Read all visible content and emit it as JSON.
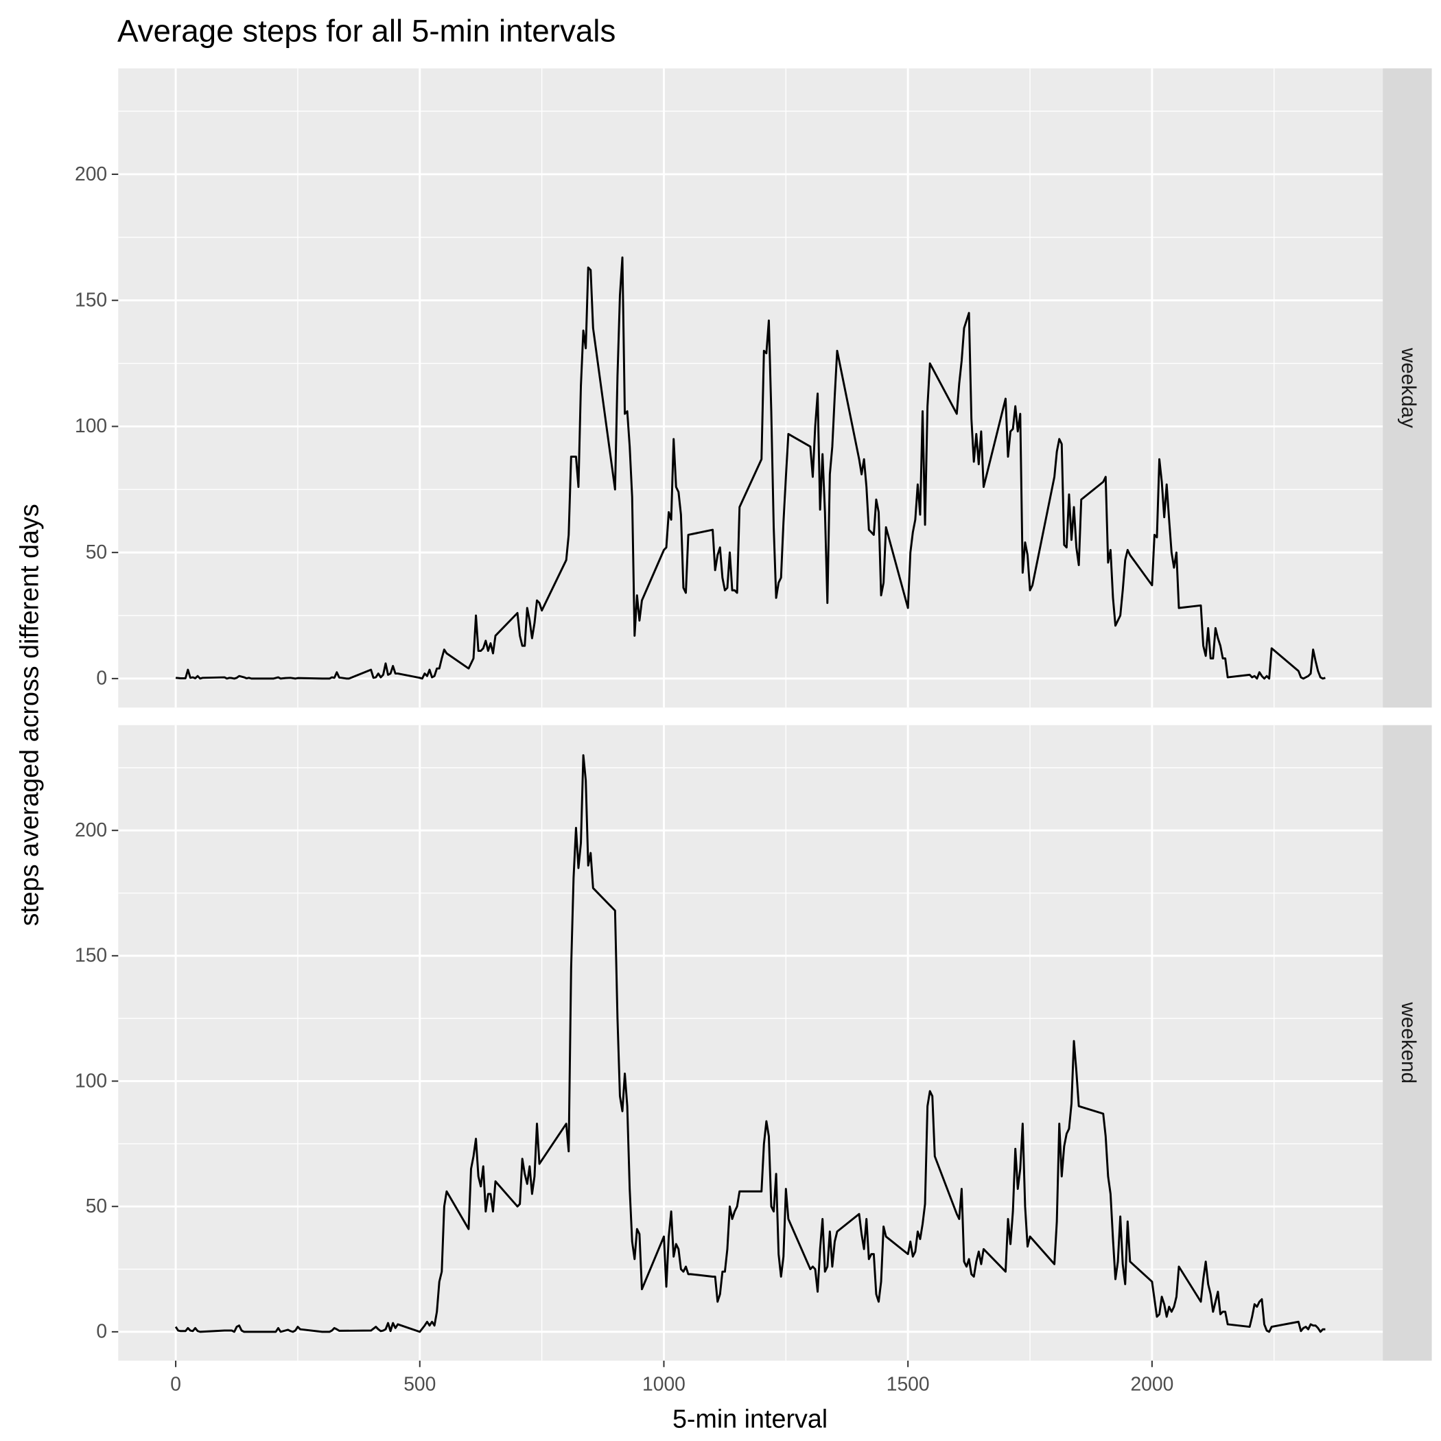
{
  "chart_data": {
    "type": "line",
    "title": "Average steps for all 5-min intervals",
    "xlabel": "5-min interval",
    "ylabel": "steps averaged across different days",
    "xlim": [
      -117.75,
      2472.75
    ],
    "xticks": [
      0,
      500,
      1000,
      1500,
      2000
    ],
    "xminorticks": [
      250,
      750,
      1250,
      1750,
      2250
    ],
    "ylim": [
      -11.5,
      242
    ],
    "yticks": [
      0,
      50,
      100,
      150,
      200
    ],
    "yminorticks": [
      25,
      75,
      125,
      175,
      225
    ],
    "grid": true,
    "series": [
      {
        "name": "weekday",
        "color": "#000000",
        "x": [
          0,
          5,
          10,
          20,
          25,
          30,
          35,
          40,
          45,
          50,
          55,
          100,
          105,
          110,
          115,
          120,
          125,
          130,
          140,
          145,
          150,
          155,
          200,
          210,
          215,
          225,
          235,
          245,
          250,
          300,
          315,
          320,
          325,
          330,
          335,
          340,
          350,
          355,
          400,
          405,
          410,
          415,
          420,
          425,
          430,
          435,
          440,
          445,
          450,
          455,
          500,
          505,
          510,
          515,
          520,
          525,
          530,
          535,
          540,
          545,
          550,
          555,
          600,
          605,
          610,
          615,
          620,
          625,
          630,
          635,
          640,
          645,
          650,
          655,
          700,
          705,
          710,
          715,
          720,
          725,
          730,
          735,
          740,
          745,
          750,
          800,
          805,
          810,
          815,
          820,
          825,
          830,
          835,
          840,
          845,
          850,
          855,
          900,
          905,
          910,
          915,
          920,
          925,
          930,
          935,
          940,
          945,
          950,
          955,
          1000,
          1005,
          1010,
          1015,
          1020,
          1025,
          1030,
          1035,
          1040,
          1045,
          1050,
          1100,
          1105,
          1110,
          1115,
          1120,
          1125,
          1130,
          1135,
          1140,
          1145,
          1150,
          1155,
          1200,
          1205,
          1210,
          1215,
          1220,
          1225,
          1230,
          1235,
          1240,
          1245,
          1250,
          1255,
          1300,
          1305,
          1310,
          1315,
          1320,
          1325,
          1330,
          1335,
          1340,
          1345,
          1350,
          1355,
          1400,
          1405,
          1410,
          1415,
          1420,
          1425,
          1430,
          1435,
          1440,
          1445,
          1450,
          1455,
          1500,
          1505,
          1510,
          1515,
          1520,
          1525,
          1530,
          1535,
          1540,
          1545,
          1600,
          1605,
          1610,
          1615,
          1620,
          1625,
          1630,
          1635,
          1640,
          1645,
          1650,
          1655,
          1700,
          1705,
          1710,
          1715,
          1720,
          1725,
          1730,
          1735,
          1740,
          1745,
          1750,
          1755,
          1800,
          1805,
          1810,
          1815,
          1820,
          1825,
          1830,
          1835,
          1840,
          1845,
          1850,
          1855,
          1900,
          1905,
          1910,
          1915,
          1920,
          1925,
          1930,
          1935,
          1940,
          1945,
          1950,
          1955,
          2000,
          2005,
          2010,
          2015,
          2020,
          2025,
          2030,
          2035,
          2040,
          2045,
          2050,
          2055,
          2100,
          2105,
          2110,
          2115,
          2120,
          2125,
          2130,
          2135,
          2140,
          2145,
          2150,
          2155,
          2200,
          2205,
          2210,
          2215,
          2220,
          2225,
          2230,
          2235,
          2240,
          2245,
          2300,
          2305,
          2310,
          2315,
          2320,
          2325,
          2330,
          2335,
          2340,
          2345,
          2350,
          2355
        ],
        "values": [
          0.3,
          0.2,
          0.1,
          0.1,
          3.5,
          0.3,
          0.5,
          0.1,
          1,
          0,
          0.3,
          0.5,
          0,
          0.3,
          0.2,
          0,
          0.3,
          1,
          0.5,
          0.1,
          0.3,
          0,
          0,
          0.5,
          0,
          0.2,
          0.3,
          0,
          0.2,
          0,
          0,
          0.5,
          0.3,
          2.5,
          0.4,
          0.3,
          0,
          0,
          3.5,
          0.3,
          0.5,
          2,
          0.5,
          1.5,
          6,
          1.5,
          2,
          5,
          2,
          2,
          0.3,
          0,
          2,
          1,
          3.5,
          0.5,
          1,
          4,
          4,
          8,
          11.5,
          10,
          4,
          6,
          8,
          25,
          11,
          11,
          12,
          15,
          11,
          14,
          10,
          17,
          26,
          17,
          13,
          13,
          28,
          23,
          16,
          22,
          31,
          30,
          27,
          47,
          57,
          88,
          88,
          88,
          76,
          116,
          138,
          131,
          163,
          162,
          139,
          75,
          120,
          152,
          167,
          105,
          106,
          92,
          72,
          17,
          33,
          23,
          31,
          51,
          52,
          66,
          63,
          95,
          76,
          74,
          65,
          36,
          34,
          57,
          59,
          43,
          49,
          52,
          40,
          35,
          36,
          50,
          35,
          35,
          34,
          68,
          87,
          130,
          129,
          142,
          106,
          60,
          32,
          38,
          40,
          62,
          80,
          97,
          92,
          80,
          100,
          113,
          67,
          89,
          66,
          30,
          81,
          92,
          112,
          130,
          87,
          81,
          87,
          76,
          59,
          58,
          57,
          71,
          66,
          33,
          38,
          60,
          28,
          50,
          58,
          63,
          77,
          65,
          106,
          61,
          108,
          125,
          105,
          117,
          126,
          139,
          142,
          145,
          103,
          86,
          97,
          85,
          98,
          76,
          111,
          88,
          98,
          99,
          108,
          98,
          105,
          42,
          54,
          49,
          35,
          37,
          80,
          90,
          95,
          93,
          53,
          52,
          73,
          55,
          68,
          52,
          45,
          71,
          78,
          80,
          46,
          51,
          32,
          21,
          23,
          25,
          35,
          47,
          51,
          49,
          37,
          57,
          56,
          87,
          78,
          64,
          77,
          63,
          50,
          44,
          50,
          28,
          29,
          13,
          9,
          20,
          8,
          8,
          20,
          16,
          13,
          8,
          8,
          0.5,
          1.5,
          0.5,
          1,
          0,
          2.5,
          1,
          0,
          1,
          0,
          12,
          3,
          0.5,
          0,
          0.5,
          1,
          2,
          11.5,
          7,
          3,
          0.5,
          0,
          0.3
        ]
      },
      {
        "name": "weekend",
        "color": "#000000",
        "x": [
          0,
          5,
          10,
          20,
          25,
          30,
          35,
          40,
          45,
          50,
          100,
          115,
          120,
          125,
          130,
          135,
          140,
          205,
          210,
          215,
          230,
          235,
          240,
          245,
          250,
          255,
          300,
          315,
          320,
          325,
          330,
          335,
          400,
          410,
          415,
          420,
          425,
          430,
          435,
          440,
          445,
          450,
          455,
          500,
          510,
          515,
          520,
          525,
          530,
          535,
          540,
          545,
          550,
          555,
          600,
          605,
          610,
          615,
          620,
          625,
          630,
          635,
          640,
          645,
          650,
          655,
          700,
          705,
          710,
          715,
          720,
          725,
          730,
          735,
          740,
          745,
          800,
          805,
          810,
          815,
          820,
          825,
          830,
          835,
          840,
          845,
          850,
          855,
          900,
          905,
          910,
          915,
          920,
          925,
          930,
          935,
          940,
          945,
          950,
          955,
          1000,
          1005,
          1010,
          1015,
          1020,
          1025,
          1030,
          1035,
          1040,
          1045,
          1050,
          1055,
          1100,
          1105,
          1110,
          1115,
          1120,
          1125,
          1130,
          1135,
          1140,
          1145,
          1150,
          1155,
          1200,
          1205,
          1210,
          1215,
          1220,
          1225,
          1230,
          1235,
          1240,
          1245,
          1250,
          1255,
          1300,
          1305,
          1310,
          1315,
          1320,
          1325,
          1330,
          1335,
          1340,
          1345,
          1350,
          1355,
          1400,
          1405,
          1410,
          1415,
          1420,
          1425,
          1430,
          1435,
          1440,
          1445,
          1450,
          1455,
          1500,
          1505,
          1510,
          1515,
          1520,
          1525,
          1530,
          1535,
          1540,
          1545,
          1550,
          1555,
          1600,
          1605,
          1610,
          1615,
          1620,
          1625,
          1630,
          1635,
          1640,
          1645,
          1650,
          1655,
          1700,
          1705,
          1710,
          1715,
          1720,
          1725,
          1730,
          1735,
          1740,
          1745,
          1750,
          1800,
          1805,
          1810,
          1815,
          1820,
          1825,
          1830,
          1835,
          1840,
          1845,
          1850,
          1900,
          1905,
          1910,
          1915,
          1920,
          1925,
          1930,
          1935,
          1940,
          1945,
          1950,
          1955,
          2000,
          2005,
          2010,
          2015,
          2020,
          2025,
          2030,
          2035,
          2040,
          2045,
          2050,
          2055,
          2100,
          2105,
          2110,
          2115,
          2120,
          2125,
          2130,
          2135,
          2140,
          2145,
          2150,
          2155,
          2200,
          2205,
          2210,
          2215,
          2220,
          2225,
          2230,
          2235,
          2240,
          2245,
          2300,
          2305,
          2310,
          2315,
          2320,
          2325,
          2330,
          2335,
          2340,
          2345,
          2350,
          2355
        ],
        "values": [
          2,
          0.5,
          0.3,
          0.3,
          1.5,
          0.5,
          0.3,
          1.5,
          0.3,
          0,
          0.5,
          0.5,
          0,
          2,
          2.5,
          0.5,
          0,
          0,
          1.5,
          0,
          0.8,
          0.3,
          0,
          0.5,
          2,
          1,
          0,
          0,
          0.5,
          1.5,
          1,
          0.4,
          0.5,
          2,
          1,
          0.3,
          0.5,
          1,
          3.5,
          0.3,
          3.5,
          1.5,
          3,
          0,
          2.5,
          4,
          2.5,
          4,
          2.5,
          8,
          20,
          24,
          50,
          56,
          41,
          65,
          70,
          77,
          62,
          58,
          66,
          48,
          55,
          55,
          48,
          60,
          50,
          51,
          69,
          63,
          59,
          66,
          55,
          62,
          83,
          67,
          83,
          72,
          145,
          181,
          201,
          185,
          195,
          230,
          220,
          186,
          191,
          177,
          168,
          125,
          94,
          88,
          103,
          90,
          57,
          36,
          29,
          41,
          39,
          17,
          38,
          18,
          38,
          48,
          30,
          35,
          33,
          25,
          24,
          26,
          23,
          23,
          22,
          22,
          12,
          15,
          24,
          24,
          33,
          50,
          45,
          48,
          50,
          56,
          56,
          75,
          84,
          78,
          50,
          48,
          63,
          31,
          22,
          30,
          57,
          45,
          25,
          26,
          25,
          16,
          33,
          45,
          24,
          26,
          40,
          26,
          36,
          40,
          47,
          39,
          33,
          45,
          29,
          31,
          31,
          15,
          12,
          20,
          42,
          38,
          31,
          36,
          30,
          32,
          40,
          37,
          43,
          51,
          90,
          96,
          94,
          70,
          47,
          45,
          57,
          28,
          26,
          29,
          23,
          22,
          28,
          32,
          27,
          33,
          24,
          45,
          35,
          48,
          73,
          57,
          65,
          83,
          50,
          34,
          38,
          27,
          44,
          83,
          62,
          74,
          79,
          81,
          91,
          116,
          104,
          90,
          87,
          78,
          62,
          55,
          37,
          21,
          28,
          46,
          27,
          19,
          44,
          28,
          20,
          13,
          6,
          7,
          14,
          11,
          6,
          10,
          8,
          10,
          14,
          26,
          12,
          21,
          28,
          19,
          15,
          8,
          12,
          16,
          7,
          8,
          8,
          3,
          2,
          6,
          11,
          10,
          12,
          13,
          3,
          0.5,
          0,
          2,
          4,
          0.3,
          1.5,
          2,
          1,
          3,
          2.5,
          2.5,
          1.5,
          0,
          1,
          1
        ]
      }
    ]
  }
}
